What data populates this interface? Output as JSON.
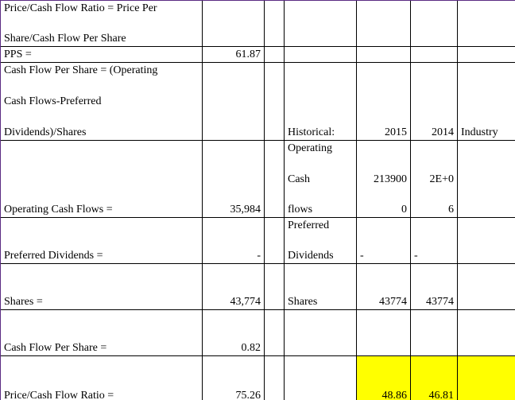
{
  "rows": {
    "r1": {
      "label_line1": "Price/Cash Flow Ratio = Price Per",
      "label_line2": "Share/Cash Flow Per Share"
    },
    "r2": {
      "label": "PPS =",
      "value": "61.87"
    },
    "r3": {
      "label_line1": "Cash Flow Per Share = (Operating",
      "label_line2": "Cash Flows-Preferred",
      "label_line3": "Dividends)/Shares",
      "hist_label": "Historical:",
      "y2015": "2015",
      "y2014": "2014",
      "industry": "Industry"
    },
    "r4": {
      "label": "Operating Cash Flows =",
      "value": "35,984",
      "hist_l1": "Operating",
      "hist_l2": "Cash",
      "hist_l3": "flows",
      "v2015_l1": "213900",
      "v2015_l2": "0",
      "v2014_l1": "2E+0",
      "v2014_l2": "6"
    },
    "r5": {
      "label": "Preferred Dividends =",
      "value": "-",
      "hist_l1": "Preferred",
      "hist_l2": "Dividends",
      "v2015": "-",
      "v2014": "-"
    },
    "r6": {
      "label": "Shares =",
      "value": "43,774",
      "hist": "Shares",
      "v2015": "43774",
      "v2014": "43774"
    },
    "r7": {
      "label": "Cash Flow Per Share =",
      "value": "0.82"
    },
    "r8": {
      "label": "Price/Cash Flow Ratio =",
      "value": "75.26",
      "v2015": "48.86",
      "v2014": "46.81"
    }
  },
  "colors": {
    "highlight": "#ffff00",
    "border": "#000000",
    "frame": "#5b2c83"
  }
}
